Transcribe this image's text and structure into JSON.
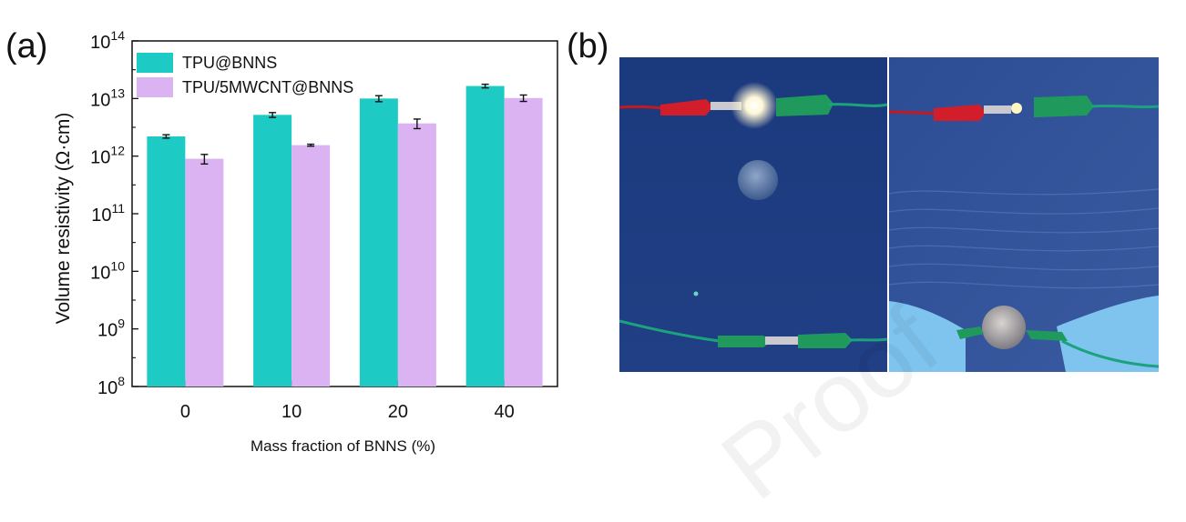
{
  "panels": {
    "a": "(a)",
    "b": "(b)"
  },
  "chart_data": {
    "type": "bar",
    "xlabel": "Mass fraction of BNNS (%)",
    "ylabel": "Volume resistivity (Ω·cm)",
    "yscale": "log",
    "ylim": [
      100000000.0,
      100000000000000.0
    ],
    "ytick_bases": [
      "10",
      "10",
      "10",
      "10",
      "10",
      "10",
      "10"
    ],
    "ytick_exps": [
      "8",
      "9",
      "10",
      "11",
      "12",
      "13",
      "14"
    ],
    "categories": [
      "0",
      "10",
      "20",
      "40"
    ],
    "series": [
      {
        "name": "TPU@BNNS",
        "color": "#1ecbc4",
        "values": [
          2200000000000.0,
          5200000000000.0,
          10000000000000.0,
          16500000000000.0
        ],
        "errors": [
          150000000000.0,
          500000000000.0,
          1200000000000.0,
          1200000000000.0
        ]
      },
      {
        "name": "TPU/5MWCNT@BNNS",
        "color": "#dbb2f2",
        "values": [
          900000000000.0,
          1550000000000.0,
          3700000000000.0,
          10200000000000.0
        ],
        "errors": [
          170000000000.0,
          60000000000.0,
          700000000000.0,
          1300000000000.0
        ]
      }
    ],
    "legend_position": "top-left",
    "grid": false
  },
  "photo": {
    "background": "#1f3c82",
    "panels": [
      "left-scene",
      "right-scene"
    ]
  }
}
